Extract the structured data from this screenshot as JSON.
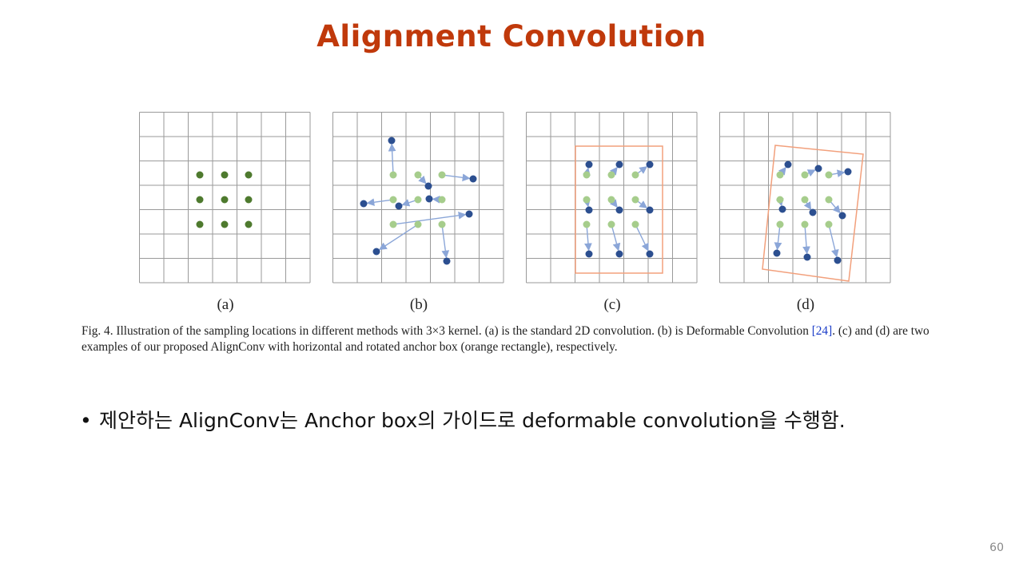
{
  "slide": {
    "title": "Alignment Convolution",
    "page_number": "60"
  },
  "figure": {
    "panels": [
      {
        "label": "(a)"
      },
      {
        "label": "(b)"
      },
      {
        "label": "(c)"
      },
      {
        "label": "(d)"
      }
    ],
    "colors": {
      "grid": "#9a9a9a",
      "standard_point": "#4e7a2e",
      "original_point": "#a6cd8c",
      "offset_point": "#2c4f90",
      "arrow": "#8ba6d8",
      "anchor_box": "#f2a07c"
    },
    "caption": {
      "before_ref": "Fig. 4.  Illustration of the sampling locations in different methods with 3×3 kernel. (a) is the standard 2D convolution. (b) is Deformable Convolution ",
      "ref": "[24]",
      "after_ref": ". (c) and (d) are two examples of our proposed AlignConv with horizontal and rotated anchor box (orange rectangle), respectively."
    }
  },
  "bullet": {
    "text": "제안하는 AlignConv는 Anchor box의 가이드로 deformable convolution을 수행함."
  }
}
